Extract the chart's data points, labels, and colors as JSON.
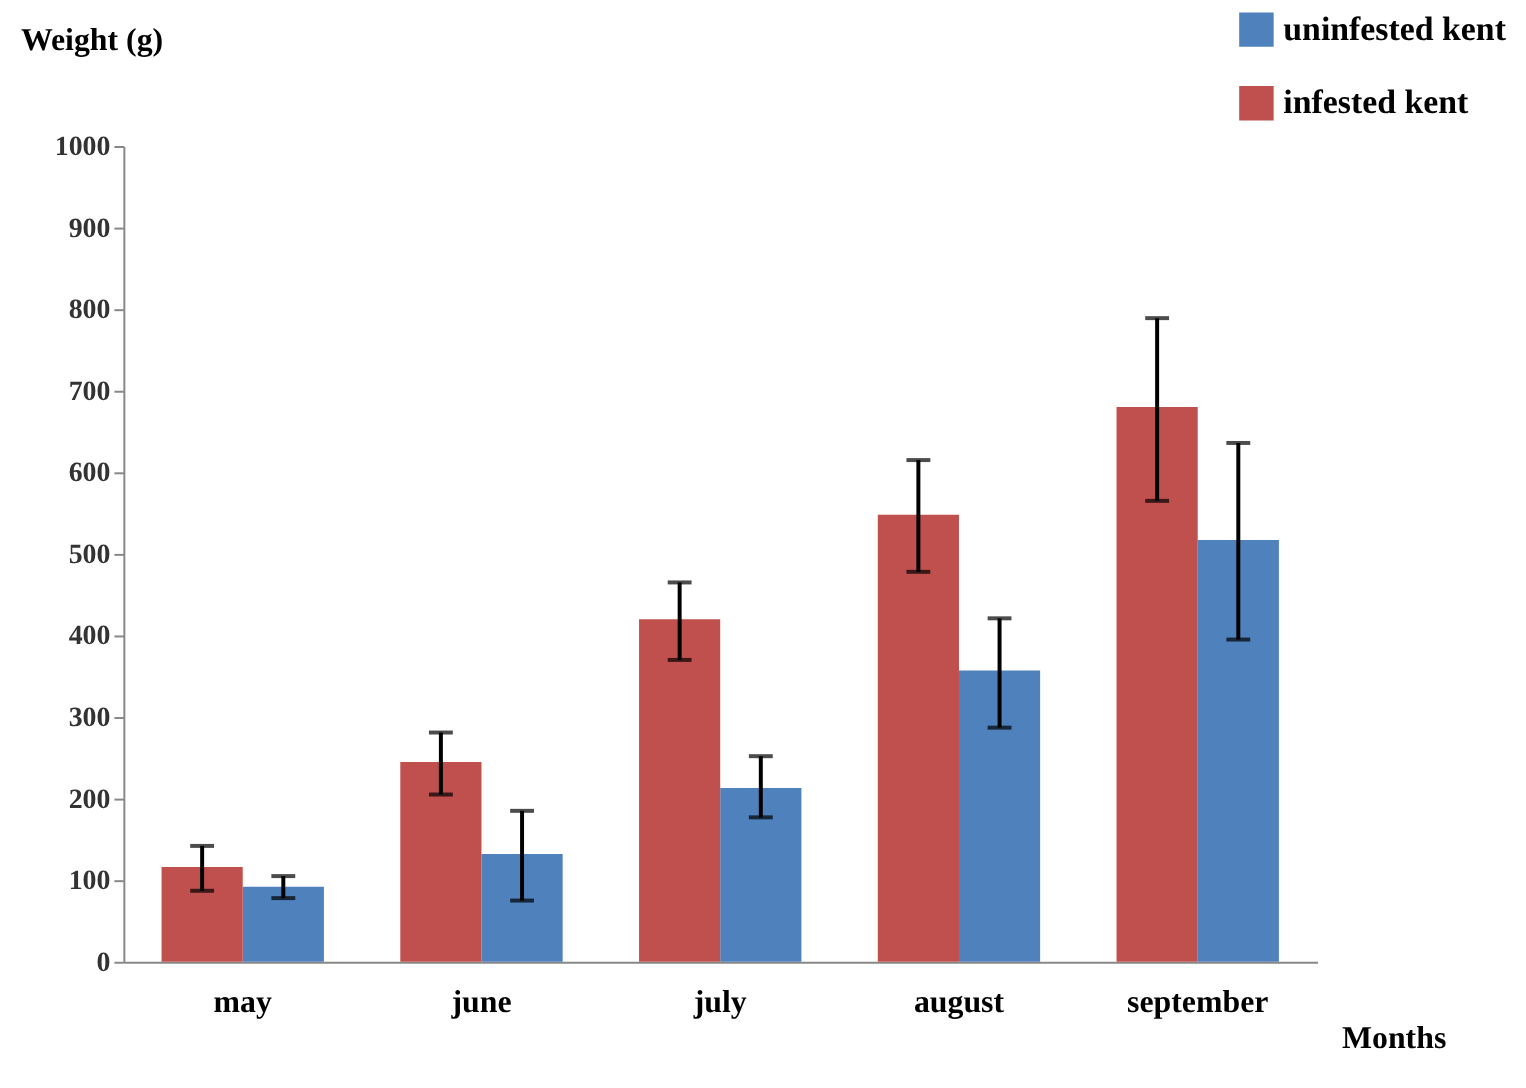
{
  "chart_data": {
    "type": "bar",
    "xlabel": "Months",
    "ylabel": "Weight (g)",
    "categories": [
      "may",
      "june",
      "july",
      "august",
      "september"
    ],
    "series": [
      {
        "name": "uninfested kent",
        "color": "#4f81bd",
        "values": [
          92,
          132,
          213,
          357,
          517
        ],
        "errors": [
          [
            78,
            105
          ],
          [
            75,
            185
          ],
          [
            177,
            252
          ],
          [
            287,
            421
          ],
          [
            395,
            636
          ]
        ]
      },
      {
        "name": "infested kent",
        "color": "#c0504d",
        "values": [
          116,
          245,
          420,
          548,
          680
        ],
        "errors": [
          [
            87,
            142
          ],
          [
            205,
            281
          ],
          [
            370,
            465
          ],
          [
            478,
            615
          ],
          [
            565,
            789
          ]
        ]
      }
    ],
    "ylim": [
      0,
      1000
    ],
    "yticks": [
      0,
      100,
      200,
      300,
      400,
      500,
      600,
      700,
      800,
      900,
      1000
    ],
    "grid": false,
    "legend": "top right"
  }
}
